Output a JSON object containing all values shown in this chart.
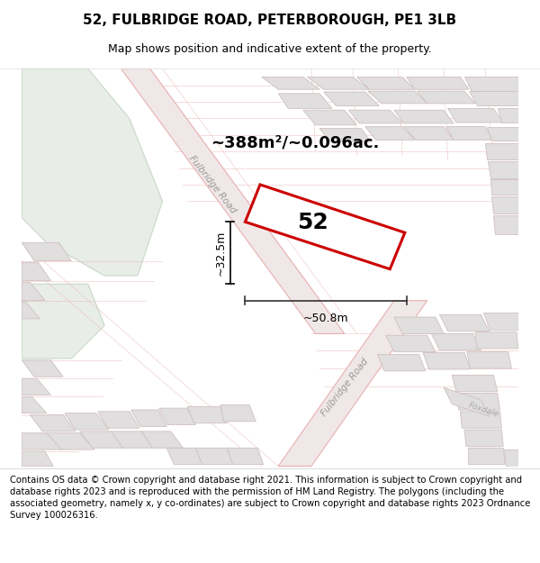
{
  "title": "52, FULBRIDGE ROAD, PETERBOROUGH, PE1 3LB",
  "subtitle": "Map shows position and indicative extent of the property.",
  "area_text": "~388m²/~0.096ac.",
  "label_52": "52",
  "dim_width": "~50.8m",
  "dim_height": "~32.5m",
  "footer": "Contains OS data © Crown copyright and database right 2021. This information is subject to Crown copyright and database rights 2023 and is reproduced with the permission of HM Land Registry. The polygons (including the associated geometry, namely x, y co-ordinates) are subject to Crown copyright and database rights 2023 Ordnance Survey 100026316.",
  "map_bg": "#f5f2f0",
  "road_line_color": "#e8b0b0",
  "road_fill_color": "#f0e8e8",
  "plot_edge_color": "#cc0000",
  "plot_fill": "#ffffff",
  "building_fill": "#e0dede",
  "building_edge": "#d0c0c0",
  "green_fill": "#e8ede8",
  "green_edge": "#c8d8c8",
  "title_fontsize": 11,
  "subtitle_fontsize": 9,
  "area_fontsize": 13,
  "label_fontsize": 18,
  "dim_fontsize": 9,
  "footer_fontsize": 7.2
}
